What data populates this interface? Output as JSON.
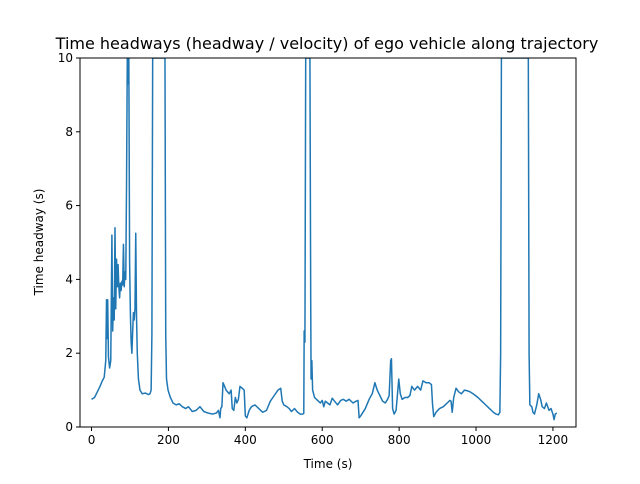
{
  "chart_data": {
    "type": "line",
    "title": "Time headways (headway / velocity) of ego vehicle along trajectory",
    "xlabel": "Time (s)",
    "ylabel": "Time headway (s)",
    "xlim": [
      -30,
      1260
    ],
    "ylim": [
      0,
      10
    ],
    "xticks": [
      0,
      200,
      400,
      600,
      800,
      1000,
      1200
    ],
    "yticks": [
      0,
      2,
      4,
      6,
      8,
      10
    ],
    "grid": false,
    "legend": "none",
    "color": "#1f77b4",
    "series": [
      {
        "points": [
          [
            0,
            0.75
          ],
          [
            8,
            0.8
          ],
          [
            15,
            0.95
          ],
          [
            22,
            1.1
          ],
          [
            28,
            1.25
          ],
          [
            33,
            1.35
          ],
          [
            37,
            1.8
          ],
          [
            39,
            3.45
          ],
          [
            40,
            2.4
          ],
          [
            42,
            3.45
          ],
          [
            44,
            1.9
          ],
          [
            47,
            1.6
          ],
          [
            50,
            1.8
          ],
          [
            53,
            5.2
          ],
          [
            55,
            2.6
          ],
          [
            57,
            3.5
          ],
          [
            59,
            2.9
          ],
          [
            61,
            5.4
          ],
          [
            63,
            3.2
          ],
          [
            65,
            4.55
          ],
          [
            67,
            3.8
          ],
          [
            69,
            4.4
          ],
          [
            71,
            3.8
          ],
          [
            73,
            3.5
          ],
          [
            75,
            3.9
          ],
          [
            77,
            3.7
          ],
          [
            79,
            3.95
          ],
          [
            81,
            3.85
          ],
          [
            83,
            4.95
          ],
          [
            85,
            3.8
          ],
          [
            87,
            4.2
          ],
          [
            89,
            4.0
          ],
          [
            91,
            6.5
          ],
          [
            93,
            10
          ],
          [
            95,
            9.3
          ],
          [
            97,
            10
          ],
          [
            99,
            4.5
          ],
          [
            101,
            3.1
          ],
          [
            103,
            2.3
          ],
          [
            105,
            2.0
          ],
          [
            107,
            2.6
          ],
          [
            109,
            3.1
          ],
          [
            111,
            2.9
          ],
          [
            113,
            3.2
          ],
          [
            115,
            5.25
          ],
          [
            117,
            3.0
          ],
          [
            119,
            2.0
          ],
          [
            122,
            1.3
          ],
          [
            126,
            1.0
          ],
          [
            132,
            0.9
          ],
          [
            140,
            0.92
          ],
          [
            148,
            0.88
          ],
          [
            152,
            0.9
          ],
          [
            155,
            1.0
          ],
          [
            157,
            2.5
          ],
          [
            159,
            10
          ],
          [
            191,
            10
          ],
          [
            193,
            2.5
          ],
          [
            195,
            1.3
          ],
          [
            199,
            1.0
          ],
          [
            205,
            0.8
          ],
          [
            212,
            0.65
          ],
          [
            220,
            0.6
          ],
          [
            228,
            0.63
          ],
          [
            236,
            0.55
          ],
          [
            245,
            0.5
          ],
          [
            252,
            0.55
          ],
          [
            262,
            0.42
          ],
          [
            272,
            0.45
          ],
          [
            282,
            0.55
          ],
          [
            292,
            0.42
          ],
          [
            302,
            0.38
          ],
          [
            315,
            0.35
          ],
          [
            325,
            0.38
          ],
          [
            330,
            0.45
          ],
          [
            334,
            0.25
          ],
          [
            336,
            0.5
          ],
          [
            339,
            0.55
          ],
          [
            342,
            1.2
          ],
          [
            350,
            1.0
          ],
          [
            358,
            0.9
          ],
          [
            363,
            1.0
          ],
          [
            366,
            0.5
          ],
          [
            370,
            0.45
          ],
          [
            374,
            0.8
          ],
          [
            378,
            0.65
          ],
          [
            382,
            0.75
          ],
          [
            386,
            1.1
          ],
          [
            392,
            1.05
          ],
          [
            397,
            1.0
          ],
          [
            400,
            0.3
          ],
          [
            404,
            0.25
          ],
          [
            410,
            0.45
          ],
          [
            416,
            0.55
          ],
          [
            425,
            0.6
          ],
          [
            435,
            0.5
          ],
          [
            445,
            0.4
          ],
          [
            455,
            0.45
          ],
          [
            465,
            0.7
          ],
          [
            475,
            0.85
          ],
          [
            485,
            1.0
          ],
          [
            492,
            1.05
          ],
          [
            496,
            0.7
          ],
          [
            500,
            0.6
          ],
          [
            508,
            0.55
          ],
          [
            514,
            0.5
          ],
          [
            520,
            0.42
          ],
          [
            528,
            0.5
          ],
          [
            536,
            0.4
          ],
          [
            543,
            0.35
          ],
          [
            549,
            0.35
          ],
          [
            552,
            0.37
          ],
          [
            553,
            2.6
          ],
          [
            555,
            2.3
          ],
          [
            557,
            10
          ],
          [
            568,
            10
          ],
          [
            570,
            3.5
          ],
          [
            571,
            1.3
          ],
          [
            573,
            1.8
          ],
          [
            575,
            1.0
          ],
          [
            580,
            0.8
          ],
          [
            588,
            0.72
          ],
          [
            595,
            0.65
          ],
          [
            600,
            0.72
          ],
          [
            604,
            0.55
          ],
          [
            608,
            0.7
          ],
          [
            614,
            0.65
          ],
          [
            620,
            0.6
          ],
          [
            626,
            0.78
          ],
          [
            632,
            0.7
          ],
          [
            640,
            0.6
          ],
          [
            648,
            0.72
          ],
          [
            655,
            0.75
          ],
          [
            662,
            0.7
          ],
          [
            670,
            0.75
          ],
          [
            680,
            0.65
          ],
          [
            688,
            0.7
          ],
          [
            693,
            0.72
          ],
          [
            696,
            0.25
          ],
          [
            700,
            0.3
          ],
          [
            712,
            0.5
          ],
          [
            722,
            0.75
          ],
          [
            730,
            0.9
          ],
          [
            737,
            1.2
          ],
          [
            743,
            1.0
          ],
          [
            750,
            0.85
          ],
          [
            757,
            0.7
          ],
          [
            764,
            0.65
          ],
          [
            770,
            0.75
          ],
          [
            774,
            0.85
          ],
          [
            778,
            1.8
          ],
          [
            780,
            1.85
          ],
          [
            783,
            0.5
          ],
          [
            787,
            0.35
          ],
          [
            792,
            0.45
          ],
          [
            795,
            0.8
          ],
          [
            799,
            1.3
          ],
          [
            803,
            0.9
          ],
          [
            808,
            0.75
          ],
          [
            815,
            0.8
          ],
          [
            822,
            0.8
          ],
          [
            828,
            0.85
          ],
          [
            833,
            1.1
          ],
          [
            840,
            1.0
          ],
          [
            848,
            1.1
          ],
          [
            856,
            1.0
          ],
          [
            862,
            1.25
          ],
          [
            870,
            1.2
          ],
          [
            878,
            1.2
          ],
          [
            884,
            1.15
          ],
          [
            887,
            0.6
          ],
          [
            890,
            0.28
          ],
          [
            896,
            0.4
          ],
          [
            905,
            0.5
          ],
          [
            915,
            0.55
          ],
          [
            925,
            0.65
          ],
          [
            932,
            0.72
          ],
          [
            935,
            0.7
          ],
          [
            938,
            0.4
          ],
          [
            942,
            0.8
          ],
          [
            948,
            1.05
          ],
          [
            955,
            0.95
          ],
          [
            962,
            0.9
          ],
          [
            970,
            1.0
          ],
          [
            978,
            0.98
          ],
          [
            985,
            0.95
          ],
          [
            995,
            0.88
          ],
          [
            1005,
            0.8
          ],
          [
            1015,
            0.7
          ],
          [
            1025,
            0.6
          ],
          [
            1035,
            0.5
          ],
          [
            1045,
            0.4
          ],
          [
            1052,
            0.35
          ],
          [
            1058,
            0.33
          ],
          [
            1062,
            0.4
          ],
          [
            1064,
            2.0
          ],
          [
            1066,
            10
          ],
          [
            1136,
            10
          ],
          [
            1138,
            2.0
          ],
          [
            1140,
            0.6
          ],
          [
            1145,
            0.55
          ],
          [
            1148,
            0.4
          ],
          [
            1152,
            0.35
          ],
          [
            1158,
            0.6
          ],
          [
            1163,
            0.9
          ],
          [
            1168,
            0.75
          ],
          [
            1172,
            0.55
          ],
          [
            1178,
            0.5
          ],
          [
            1183,
            0.65
          ],
          [
            1190,
            0.45
          ],
          [
            1195,
            0.5
          ],
          [
            1200,
            0.35
          ],
          [
            1203,
            0.2
          ],
          [
            1206,
            0.35
          ],
          [
            1210,
            0.38
          ]
        ]
      }
    ]
  }
}
